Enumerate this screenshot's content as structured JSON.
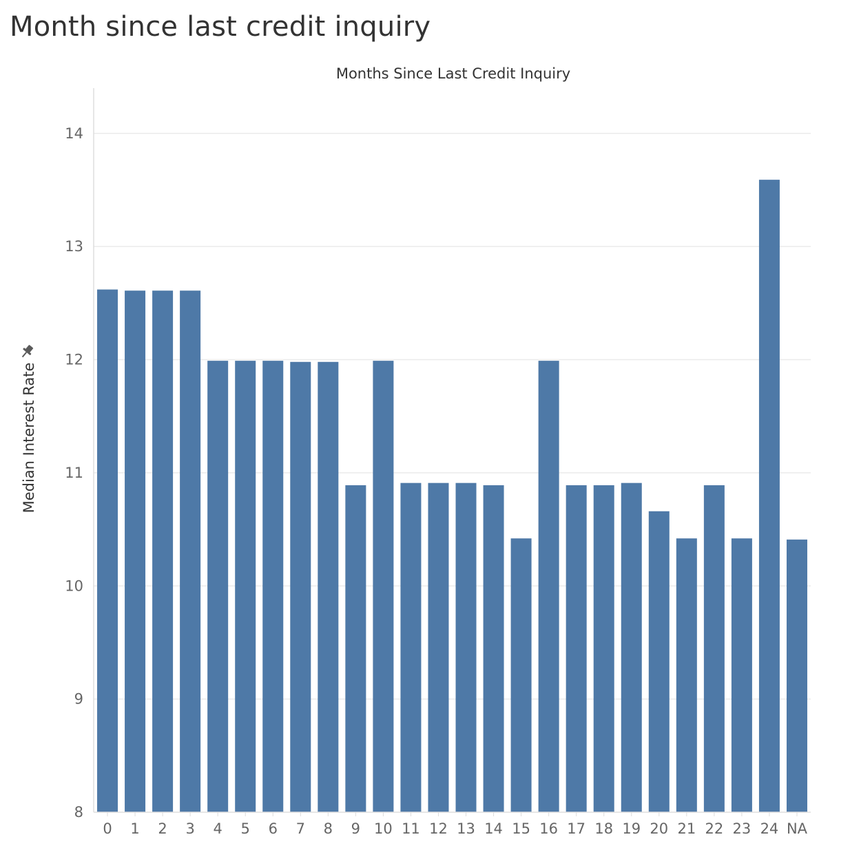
{
  "page_title": "Month since last credit inquiry",
  "icons": {
    "pin": "pin-icon"
  },
  "colors": {
    "bar": "#4E79A7",
    "grid": "#EBEBEB",
    "axis": "#DDDDDD",
    "text": "#333333",
    "tick": "#666666"
  },
  "chart_data": {
    "type": "bar",
    "title": "Months Since Last Credit Inquiry",
    "xlabel": "",
    "ylabel": "Median Interest Rate",
    "categories": [
      "0",
      "1",
      "2",
      "3",
      "4",
      "5",
      "6",
      "7",
      "8",
      "9",
      "10",
      "11",
      "12",
      "13",
      "14",
      "15",
      "16",
      "17",
      "18",
      "19",
      "20",
      "21",
      "22",
      "23",
      "24",
      "NA"
    ],
    "values": [
      12.62,
      12.61,
      12.61,
      12.61,
      11.99,
      11.99,
      11.99,
      11.98,
      11.98,
      10.89,
      11.99,
      10.91,
      10.91,
      10.91,
      10.89,
      10.42,
      11.99,
      10.89,
      10.89,
      10.91,
      10.66,
      10.42,
      10.89,
      10.42,
      13.59,
      10.41
    ],
    "ylim": [
      8,
      14.4
    ],
    "yticks": [
      8,
      9,
      10,
      11,
      12,
      13,
      14
    ],
    "grid": true
  }
}
